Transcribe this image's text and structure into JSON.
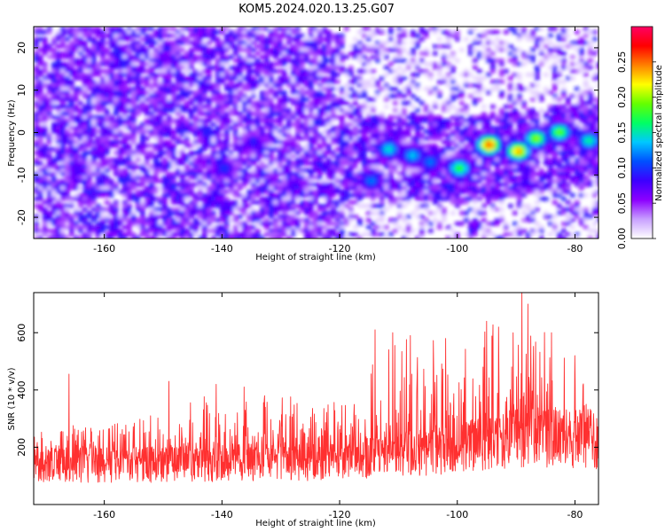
{
  "figure_title": "KOM5.2024.020.13.25.G07",
  "chart_data": [
    {
      "type": "heatmap",
      "title": "KOM5.2024.020.13.25.G07",
      "xlabel": "Height of straight line (km)",
      "ylabel": "Frequency (Hz)",
      "xlim": [
        -172,
        -76
      ],
      "ylim": [
        -25,
        25
      ],
      "x_ticks": [
        -160,
        -140,
        -120,
        -100,
        -80
      ],
      "y_ticks": [
        -20,
        -10,
        0,
        10,
        20
      ],
      "colorbar": {
        "label": "Normalized spectral amplitude",
        "range": [
          0,
          0.3
        ],
        "ticks": [
          "0.00",
          "0.05",
          "0.10",
          "0.15",
          "0.20",
          "0.25"
        ],
        "colors": [
          "#ffffff",
          "#c8a0ff",
          "#8c00ff",
          "#3c00ff",
          "#0050ff",
          "#00c8ff",
          "#00ff64",
          "#64ff00",
          "#ffff00",
          "#ff8000",
          "#ff0000",
          "#ff0064"
        ]
      },
      "hotspots": [
        {
          "x": -95,
          "y": -2.5,
          "amp": 0.26
        },
        {
          "x": -90,
          "y": -4,
          "amp": 0.24
        },
        {
          "x": -87,
          "y": -1,
          "amp": 0.2
        },
        {
          "x": -83,
          "y": 0.5,
          "amp": 0.19
        },
        {
          "x": -100,
          "y": -8,
          "amp": 0.18
        },
        {
          "x": -112,
          "y": -3.5,
          "amp": 0.15
        },
        {
          "x": -108,
          "y": -5,
          "amp": 0.14
        },
        {
          "x": -105,
          "y": -6.5,
          "amp": 0.12
        },
        {
          "x": -78,
          "y": -1.5,
          "amp": 0.16
        },
        {
          "x": -115,
          "y": -11,
          "amp": 0.12
        },
        {
          "x": -140,
          "y": -8,
          "amp": 0.1
        },
        {
          "x": -135,
          "y": -2,
          "amp": 0.09
        },
        {
          "x": -165,
          "y": -8,
          "amp": 0.08
        },
        {
          "x": -160,
          "y": 10,
          "amp": 0.07
        },
        {
          "x": -150,
          "y": 18,
          "amp": 0.07
        },
        {
          "x": -128,
          "y": -12,
          "amp": 0.08
        }
      ]
    },
    {
      "type": "line",
      "xlabel": "Height of straight line (km)",
      "ylabel": "SNR (10 * v/v)",
      "xlim": [
        -172,
        -76
      ],
      "ylim": [
        0,
        740
      ],
      "x_ticks": [
        -160,
        -140,
        -120,
        -100,
        -80
      ],
      "y_ticks": [
        200,
        400,
        600
      ],
      "series_color": "#ff3030",
      "envelope": [
        {
          "x": -172,
          "base": 140,
          "peak": 260
        },
        {
          "x": -165,
          "base": 140,
          "peak": 290
        },
        {
          "x": -160,
          "base": 140,
          "peak": 280
        },
        {
          "x": -150,
          "base": 140,
          "peak": 320
        },
        {
          "x": -140,
          "base": 145,
          "peak": 420
        },
        {
          "x": -130,
          "base": 150,
          "peak": 420
        },
        {
          "x": -120,
          "base": 150,
          "peak": 350
        },
        {
          "x": -116,
          "base": 165,
          "peak": 440
        },
        {
          "x": -112,
          "base": 175,
          "peak": 560
        },
        {
          "x": -105,
          "base": 185,
          "peak": 600
        },
        {
          "x": -100,
          "base": 195,
          "peak": 560
        },
        {
          "x": -95,
          "base": 215,
          "peak": 640
        },
        {
          "x": -90,
          "base": 230,
          "peak": 700
        },
        {
          "x": -85,
          "base": 235,
          "peak": 620
        },
        {
          "x": -80,
          "base": 230,
          "peak": 520
        },
        {
          "x": -76,
          "base": 225,
          "peak": 480
        }
      ],
      "spikes": [
        {
          "x": -166,
          "y": 455
        },
        {
          "x": -149,
          "y": 430
        },
        {
          "x": -141,
          "y": 420
        },
        {
          "x": -114,
          "y": 610
        },
        {
          "x": -111,
          "y": 600
        },
        {
          "x": -108,
          "y": 590
        },
        {
          "x": -102,
          "y": 580
        },
        {
          "x": -95,
          "y": 640
        },
        {
          "x": -93,
          "y": 620
        },
        {
          "x": -89,
          "y": 740
        },
        {
          "x": -88,
          "y": 700
        },
        {
          "x": -84,
          "y": 600
        },
        {
          "x": -80,
          "y": 520
        }
      ]
    }
  ]
}
